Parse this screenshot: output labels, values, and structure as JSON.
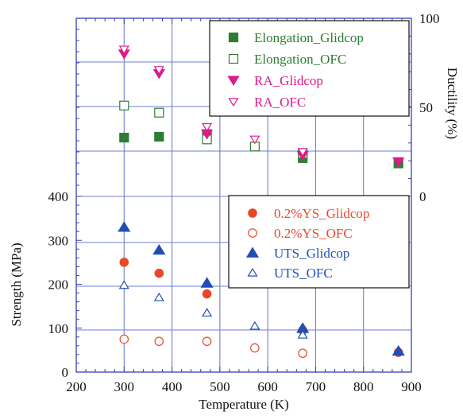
{
  "chart_data": {
    "type": "scatter",
    "xlabel": "Temperature (K)",
    "xlim": [
      200,
      900
    ],
    "x_ticks": [
      "200",
      "300",
      "400",
      "500",
      "600",
      "700",
      "800",
      "900"
    ],
    "panels": {
      "ductility": {
        "ylabel": "Ductility (%)",
        "ylim": [
          0,
          100
        ],
        "y_ticks": [
          "0",
          "50",
          "100"
        ],
        "legend": {
          "position": "top-right",
          "entries": [
            "Elongation_Glidcop",
            "Elongation_OFC",
            "RA_Glidcop",
            "RA_OFC"
          ]
        },
        "series": [
          {
            "name": "Elongation_Glidcop",
            "marker": "square-filled",
            "color": "#2e7d32",
            "x": [
              300,
              373,
              473,
              673,
              873
            ],
            "y": [
              33,
              33.5,
              35,
              21.5,
              18.5
            ]
          },
          {
            "name": "Elongation_OFC",
            "marker": "square-open",
            "color": "#2e7d32",
            "x": [
              300,
              373,
              473,
              573,
              673
            ],
            "y": [
              51,
              47,
              32,
              28,
              24
            ]
          },
          {
            "name": "RA_Glidcop",
            "marker": "triangle-down-filled",
            "color": "#e0198c",
            "x": [
              300,
              373,
              473,
              673,
              873
            ],
            "y": [
              80,
              69,
              35,
              23,
              19.5
            ]
          },
          {
            "name": "RA_OFC",
            "marker": "triangle-down-open",
            "color": "#e0198c",
            "x": [
              300,
              373,
              473,
              573,
              673
            ],
            "y": [
              82.5,
              71,
              39,
              32,
              25
            ]
          }
        ]
      },
      "strength": {
        "ylabel": "Strength (MPa)",
        "ylim": [
          0,
          400
        ],
        "y_ticks": [
          "0",
          "100",
          "200",
          "300",
          "400"
        ],
        "legend": {
          "position": "right",
          "entries": [
            "0.2%YS_Glidcop",
            "0.2%YS_OFC",
            "UTS_Glidcop",
            "UTS_OFC"
          ]
        },
        "series": [
          {
            "name": "0.2%YS_Glidcop",
            "marker": "circle-filled",
            "color": "#e8482a",
            "x": [
              300,
              373,
              473,
              673,
              873
            ],
            "y": [
              250,
              225,
              178,
              95,
              45
            ]
          },
          {
            "name": "0.2%YS_OFC",
            "marker": "circle-open",
            "color": "#e8482a",
            "x": [
              300,
              373,
              473,
              573,
              673
            ],
            "y": [
              75,
              70,
              70,
              55,
              43
            ]
          },
          {
            "name": "UTS_Glidcop",
            "marker": "triangle-up-filled",
            "color": "#1f4fb5",
            "x": [
              300,
              373,
              473,
              673,
              873
            ],
            "y": [
              330,
              278,
              203,
              100,
              48
            ]
          },
          {
            "name": "UTS_OFC",
            "marker": "triangle-up-open",
            "color": "#1f4fb5",
            "x": [
              300,
              373,
              473,
              573,
              673
            ],
            "y": [
              198,
              170,
              135,
              105,
              85
            ]
          }
        ]
      }
    },
    "grid": true,
    "grid_color": "#6f7ed0",
    "frame_color": "#3a3fb0"
  }
}
